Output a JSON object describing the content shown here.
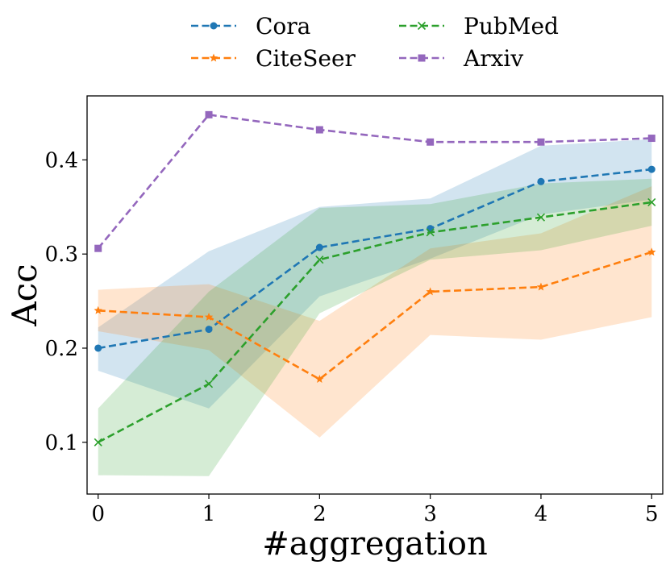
{
  "chart_data": {
    "type": "line",
    "xlabel": "#aggregation",
    "ylabel": "Acc",
    "xlim": [
      -0.1,
      5.1
    ],
    "ylim": [
      0.045,
      0.468
    ],
    "x_ticks": [
      "0",
      "1",
      "2",
      "3",
      "4",
      "5"
    ],
    "y_ticks": [
      "0.1",
      "0.2",
      "0.3",
      "0.4"
    ],
    "x": [
      0,
      1,
      2,
      3,
      4,
      5
    ],
    "legend_position": "top-center",
    "grid": false,
    "series": [
      {
        "name": "Cora",
        "color": "#1f77b4",
        "marker": "circle",
        "values": [
          0.2,
          0.22,
          0.307,
          0.327,
          0.377,
          0.39
        ],
        "band_lower": [
          0.176,
          0.136,
          0.255,
          0.295,
          0.342,
          0.358
        ],
        "band_upper": [
          0.222,
          0.303,
          0.35,
          0.359,
          0.415,
          0.422
        ]
      },
      {
        "name": "CiteSeer",
        "color": "#ff7f0e",
        "marker": "star",
        "values": [
          0.24,
          0.233,
          0.167,
          0.26,
          0.265,
          0.302
        ],
        "band_lower": [
          0.218,
          0.198,
          0.105,
          0.214,
          0.209,
          0.233
        ],
        "band_upper": [
          0.262,
          0.268,
          0.229,
          0.306,
          0.322,
          0.372
        ]
      },
      {
        "name": "PubMed",
        "color": "#2ca02c",
        "marker": "x",
        "values": [
          0.1,
          0.162,
          0.294,
          0.323,
          0.339,
          0.355
        ],
        "band_lower": [
          0.065,
          0.064,
          0.237,
          0.294,
          0.304,
          0.33
        ],
        "band_upper": [
          0.136,
          0.26,
          0.349,
          0.353,
          0.375,
          0.38
        ]
      },
      {
        "name": "Arxiv",
        "color": "#9467bd",
        "marker": "square",
        "values": [
          0.306,
          0.448,
          0.432,
          0.419,
          0.419,
          0.423
        ]
      }
    ]
  }
}
